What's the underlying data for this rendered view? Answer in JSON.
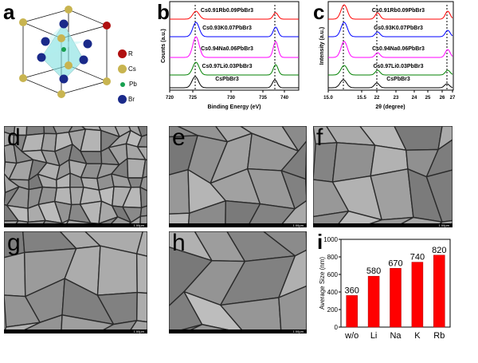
{
  "panels": {
    "a": "a",
    "b": "b",
    "c": "c",
    "d": "d",
    "e": "e",
    "f": "f",
    "g": "g",
    "h": "h",
    "i": "i"
  },
  "structure_legend": [
    {
      "label": "R",
      "color": "#b01010"
    },
    {
      "label": "Cs",
      "color": "#c8b450"
    },
    {
      "label": "Pb",
      "color": "#18a050"
    },
    {
      "label": "Br",
      "color": "#1a2a8a"
    }
  ],
  "sem_scale": "1.00μm",
  "chart_data": [
    {
      "panel": "b",
      "type": "line",
      "xlabel": "Binding Energy (eV)",
      "ylabel": "Counts (a.u.)",
      "xticks": [
        "720",
        "725",
        "730",
        "735",
        "740"
      ],
      "series": [
        {
          "name": "Cs0.91Rb0.09PbBr3",
          "color": "#ff0000",
          "peaks": [
            724.4,
            738.5
          ]
        },
        {
          "name": "Cs0.93K0.07PbBr3",
          "color": "#0000ff",
          "peaks": [
            724.3,
            738.4
          ]
        },
        {
          "name": "Cs0.94Na0.06PbBr3",
          "color": "#ff00ff",
          "peaks": [
            724.3,
            738.3
          ]
        },
        {
          "name": "Cs0.97Li0.03PbBr3",
          "color": "#008000",
          "peaks": [
            724.3,
            738.3
          ]
        },
        {
          "name": "CsPbBr3",
          "color": "#000000",
          "peaks": [
            724.0,
            738.0
          ]
        }
      ]
    },
    {
      "panel": "c",
      "type": "line",
      "xlabel": "2θ (degree)",
      "ylabel": "Intensity (a.u.)",
      "xticks": [
        "15.0",
        "15.5",
        "22",
        "23",
        "24",
        "25",
        "26",
        "27"
      ],
      "series": [
        {
          "name": "Cs0.91Rb0.09PbBr3",
          "color": "#ff0000"
        },
        {
          "name": "Cs0.93K0.07PbBr3",
          "color": "#0000ff"
        },
        {
          "name": "Cs0.94Na0.06PbBr3",
          "color": "#ff00ff"
        },
        {
          "name": "Cs0.97Li0.03PbBr3",
          "color": "#008000"
        },
        {
          "name": "CsPbBr3",
          "color": "#000000"
        }
      ]
    },
    {
      "panel": "i",
      "type": "bar",
      "categories": [
        "w/o",
        "Li",
        "Na",
        "K",
        "Rb"
      ],
      "values": [
        360,
        580,
        670,
        740,
        820
      ],
      "ylabel": "Average Size (nm)",
      "ylim": [
        0,
        1000
      ],
      "yticks": [
        "0",
        "200",
        "400",
        "600",
        "800",
        "1000"
      ],
      "color": "#ff0000"
    }
  ]
}
